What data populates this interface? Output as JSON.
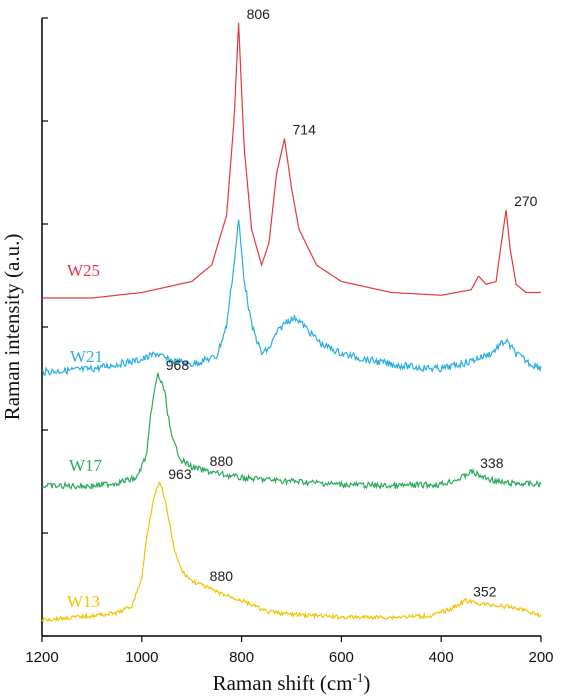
{
  "chart_data": {
    "type": "line",
    "xlabel": "Raman shift (cm",
    "xlabel_sup": "-1",
    "xlabel_close": ")",
    "ylabel": "Raman intensity (a.u.)",
    "xlim": [
      1200,
      200
    ],
    "x_reversed": true,
    "x_ticks": [
      1200,
      1000,
      800,
      600,
      400,
      200
    ],
    "y_tick_count": 6,
    "grid": false,
    "legend": "none",
    "series": [
      {
        "name": "W25",
        "color": "#e8373f",
        "label_pos": [
          1170,
          0.3
        ],
        "points": [
          [
            1200,
            0.0
          ],
          [
            1100,
            0.0
          ],
          [
            1000,
            0.02
          ],
          [
            900,
            0.06
          ],
          [
            860,
            0.12
          ],
          [
            830,
            0.3
          ],
          [
            815,
            0.65
          ],
          [
            806,
            1.0
          ],
          [
            795,
            0.55
          ],
          [
            780,
            0.25
          ],
          [
            760,
            0.12
          ],
          [
            745,
            0.2
          ],
          [
            730,
            0.45
          ],
          [
            714,
            0.58
          ],
          [
            700,
            0.4
          ],
          [
            685,
            0.25
          ],
          [
            650,
            0.12
          ],
          [
            600,
            0.06
          ],
          [
            500,
            0.02
          ],
          [
            400,
            0.01
          ],
          [
            340,
            0.03
          ],
          [
            325,
            0.08
          ],
          [
            310,
            0.05
          ],
          [
            290,
            0.06
          ],
          [
            278,
            0.22
          ],
          [
            270,
            0.32
          ],
          [
            262,
            0.18
          ],
          [
            250,
            0.05
          ],
          [
            230,
            0.02
          ],
          [
            200,
            0.02
          ]
        ],
        "peaks": [
          806,
          714,
          270
        ]
      },
      {
        "name": "W21",
        "color": "#2aaee0",
        "label_pos": [
          1170,
          0.3
        ],
        "points": [
          [
            1200,
            0.0
          ],
          [
            1100,
            0.02
          ],
          [
            1000,
            0.08
          ],
          [
            970,
            0.12
          ],
          [
            950,
            0.08
          ],
          [
            900,
            0.05
          ],
          [
            850,
            0.1
          ],
          [
            830,
            0.3
          ],
          [
            815,
            0.7
          ],
          [
            806,
            0.98
          ],
          [
            795,
            0.6
          ],
          [
            780,
            0.3
          ],
          [
            760,
            0.12
          ],
          [
            745,
            0.15
          ],
          [
            730,
            0.25
          ],
          [
            710,
            0.33
          ],
          [
            690,
            0.35
          ],
          [
            670,
            0.28
          ],
          [
            640,
            0.18
          ],
          [
            600,
            0.12
          ],
          [
            550,
            0.08
          ],
          [
            500,
            0.05
          ],
          [
            450,
            0.03
          ],
          [
            400,
            0.02
          ],
          [
            350,
            0.06
          ],
          [
            300,
            0.12
          ],
          [
            280,
            0.18
          ],
          [
            270,
            0.2
          ],
          [
            250,
            0.12
          ],
          [
            220,
            0.05
          ],
          [
            200,
            0.03
          ]
        ],
        "peaks": []
      },
      {
        "name": "W17",
        "color": "#2aaa5a",
        "label_pos": [
          1170,
          0.3
        ],
        "points": [
          [
            1200,
            0.0
          ],
          [
            1100,
            0.0
          ],
          [
            1050,
            0.02
          ],
          [
            1010,
            0.05
          ],
          [
            990,
            0.2
          ],
          [
            980,
            0.5
          ],
          [
            968,
            0.7
          ],
          [
            955,
            0.6
          ],
          [
            940,
            0.3
          ],
          [
            920,
            0.16
          ],
          [
            900,
            0.12
          ],
          [
            880,
            0.1
          ],
          [
            850,
            0.08
          ],
          [
            800,
            0.05
          ],
          [
            700,
            0.03
          ],
          [
            600,
            0.01
          ],
          [
            500,
            0.0
          ],
          [
            400,
            0.01
          ],
          [
            360,
            0.05
          ],
          [
            340,
            0.09
          ],
          [
            320,
            0.06
          ],
          [
            280,
            0.02
          ],
          [
            200,
            0.01
          ]
        ],
        "peaks": [
          968,
          880,
          338
        ]
      },
      {
        "name": "W13",
        "color": "#f4c300",
        "label_pos": [
          1170,
          0.3
        ],
        "points": [
          [
            1200,
            0.0
          ],
          [
            1100,
            0.03
          ],
          [
            1050,
            0.05
          ],
          [
            1020,
            0.1
          ],
          [
            1000,
            0.3
          ],
          [
            990,
            0.6
          ],
          [
            975,
            0.9
          ],
          [
            963,
            0.98
          ],
          [
            950,
            0.8
          ],
          [
            935,
            0.5
          ],
          [
            920,
            0.35
          ],
          [
            900,
            0.28
          ],
          [
            880,
            0.25
          ],
          [
            850,
            0.2
          ],
          [
            800,
            0.14
          ],
          [
            750,
            0.06
          ],
          [
            700,
            0.04
          ],
          [
            600,
            0.02
          ],
          [
            500,
            0.02
          ],
          [
            420,
            0.03
          ],
          [
            380,
            0.08
          ],
          [
            352,
            0.14
          ],
          [
            330,
            0.12
          ],
          [
            280,
            0.1
          ],
          [
            240,
            0.08
          ],
          [
            200,
            0.03
          ]
        ],
        "peaks": [
          963,
          880,
          352
        ]
      }
    ]
  }
}
